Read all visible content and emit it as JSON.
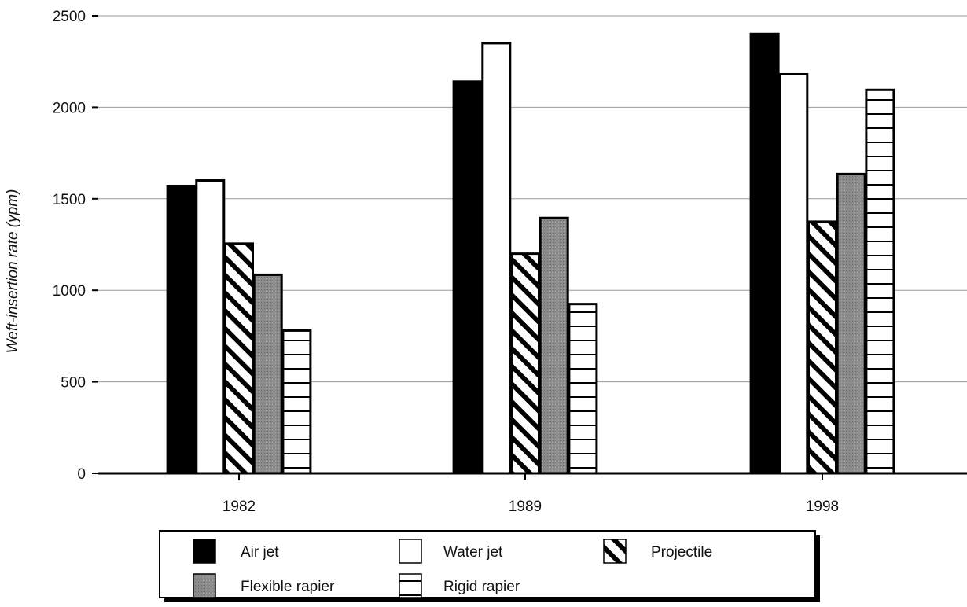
{
  "chart_data": {
    "type": "bar",
    "title": "",
    "xlabel": "",
    "ylabel": "Weft-insertion rate (ypm)",
    "categories": [
      "1982",
      "1989",
      "1998"
    ],
    "ylim": [
      0,
      2500
    ],
    "yticks": [
      0,
      500,
      1000,
      1500,
      2000,
      2500
    ],
    "grid": true,
    "legend_position": "bottom",
    "series": [
      {
        "name": "Air jet",
        "pattern": "solid-black",
        "values": [
          1570,
          2140,
          2400
        ]
      },
      {
        "name": "Water jet",
        "pattern": "white",
        "values": [
          1600,
          2350,
          2180
        ]
      },
      {
        "name": "Projectile",
        "pattern": "diagonal-hatch",
        "values": [
          1255,
          1200,
          1375
        ]
      },
      {
        "name": "Flexible rapier",
        "pattern": "gray",
        "values": [
          1085,
          1395,
          1635
        ]
      },
      {
        "name": "Rigid rapier",
        "pattern": "horizontal-lines",
        "values": [
          780,
          925,
          2095
        ]
      }
    ]
  }
}
